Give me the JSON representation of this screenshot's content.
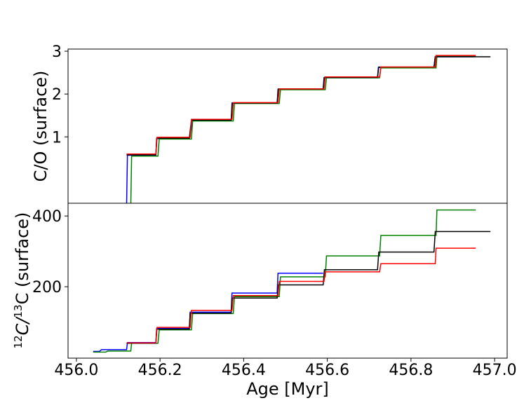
{
  "chart_data": [
    {
      "type": "line",
      "ylabel": "C/O (surface)",
      "xlim": [
        455.98,
        457.03
      ],
      "ylim": [
        -0.55,
        3.05
      ],
      "yticks": [
        1,
        2,
        3
      ],
      "series": [
        {
          "color": "#0000ff",
          "points": [
            [
              456.04,
              -0.65
            ],
            [
              456.055,
              -0.65
            ],
            [
              456.06,
              -0.58
            ],
            [
              456.12,
              -0.58
            ],
            [
              456.122,
              0.57
            ],
            [
              456.19,
              0.57
            ],
            [
              456.192,
              0.96
            ],
            [
              456.27,
              0.96
            ],
            [
              456.278,
              1.38
            ],
            [
              456.37,
              1.38
            ],
            [
              456.372,
              1.79
            ],
            [
              456.48,
              1.79
            ],
            [
              456.482,
              2.11
            ],
            [
              456.59,
              2.11
            ],
            [
              456.592,
              2.38
            ],
            [
              456.72,
              2.38
            ],
            [
              456.722,
              2.62
            ],
            [
              456.855,
              2.62
            ],
            [
              456.858,
              2.87
            ],
            [
              456.95,
              2.87
            ]
          ]
        },
        {
          "color": "#008000",
          "points": [
            [
              456.04,
              -0.68
            ],
            [
              456.07,
              -0.68
            ],
            [
              456.075,
              -0.62
            ],
            [
              456.13,
              -0.62
            ],
            [
              456.132,
              0.55
            ],
            [
              456.195,
              0.55
            ],
            [
              456.198,
              0.95
            ],
            [
              456.275,
              0.95
            ],
            [
              456.278,
              1.37
            ],
            [
              456.375,
              1.37
            ],
            [
              456.378,
              1.78
            ],
            [
              456.485,
              1.78
            ],
            [
              456.488,
              2.1
            ],
            [
              456.595,
              2.1
            ],
            [
              456.598,
              2.38
            ],
            [
              456.725,
              2.38
            ],
            [
              456.728,
              2.61
            ],
            [
              456.86,
              2.61
            ],
            [
              456.862,
              2.88
            ],
            [
              456.955,
              2.88
            ]
          ]
        },
        {
          "color": "#000000",
          "points": [
            [
              456.12,
              0.58
            ],
            [
              456.19,
              0.58
            ],
            [
              456.192,
              0.97
            ],
            [
              456.27,
              0.97
            ],
            [
              456.275,
              1.39
            ],
            [
              456.37,
              1.39
            ],
            [
              456.373,
              1.79
            ],
            [
              456.48,
              1.79
            ],
            [
              456.483,
              2.12
            ],
            [
              456.59,
              2.12
            ],
            [
              456.593,
              2.39
            ],
            [
              456.72,
              2.39
            ],
            [
              456.723,
              2.63
            ],
            [
              456.855,
              2.63
            ],
            [
              456.858,
              2.87
            ],
            [
              456.99,
              2.87
            ]
          ]
        },
        {
          "color": "#ff0000",
          "points": [
            [
              456.12,
              0.6
            ],
            [
              456.19,
              0.6
            ],
            [
              456.193,
              0.99
            ],
            [
              456.272,
              0.99
            ],
            [
              456.275,
              1.41
            ],
            [
              456.372,
              1.41
            ],
            [
              456.375,
              1.8
            ],
            [
              456.482,
              1.8
            ],
            [
              456.485,
              2.12
            ],
            [
              456.592,
              2.12
            ],
            [
              456.595,
              2.4
            ],
            [
              456.725,
              2.4
            ],
            [
              456.728,
              2.63
            ],
            [
              456.858,
              2.63
            ],
            [
              456.86,
              2.9
            ],
            [
              456.955,
              2.9
            ]
          ]
        }
      ]
    },
    {
      "type": "line",
      "xlabel": "Age [Myr]",
      "ylabel_sup": "12",
      "ylabel_mid": "C/",
      "ylabel_sup2": "13",
      "ylabel_tail": "C (surface)",
      "xlim": [
        455.98,
        457.03
      ],
      "ylim": [
        -2,
        436
      ],
      "xticks": [
        "456.0",
        "456.2",
        "456.4",
        "456.6",
        "456.8",
        "457.0"
      ],
      "xtick_values": [
        456.0,
        456.2,
        456.4,
        456.6,
        456.8,
        457.0
      ],
      "yticks": [
        200,
        400
      ],
      "series": [
        {
          "color": "#0000ff",
          "points": [
            [
              456.04,
              17
            ],
            [
              456.055,
              17
            ],
            [
              456.06,
              22
            ],
            [
              456.12,
              22
            ],
            [
              456.122,
              42
            ],
            [
              456.19,
              42
            ],
            [
              456.192,
              82
            ],
            [
              456.27,
              82
            ],
            [
              456.272,
              128
            ],
            [
              456.37,
              128
            ],
            [
              456.372,
              182
            ],
            [
              456.48,
              182
            ],
            [
              456.482,
              238
            ],
            [
              456.59,
              238
            ]
          ]
        },
        {
          "color": "#008000",
          "points": [
            [
              456.04,
              15
            ],
            [
              456.07,
              15
            ],
            [
              456.075,
              18
            ],
            [
              456.13,
              18
            ],
            [
              456.132,
              40
            ],
            [
              456.195,
              40
            ],
            [
              456.198,
              78
            ],
            [
              456.275,
              78
            ],
            [
              456.278,
              124
            ],
            [
              456.375,
              124
            ],
            [
              456.378,
              172
            ],
            [
              456.485,
              172
            ],
            [
              456.488,
              228
            ],
            [
              456.595,
              228
            ],
            [
              456.598,
              287
            ],
            [
              456.725,
              287
            ],
            [
              456.728,
              345
            ],
            [
              456.86,
              345
            ],
            [
              456.862,
              417
            ],
            [
              456.955,
              417
            ]
          ]
        },
        {
          "color": "#000000",
          "points": [
            [
              456.12,
              40
            ],
            [
              456.19,
              40
            ],
            [
              456.192,
              80
            ],
            [
              456.27,
              80
            ],
            [
              456.272,
              125
            ],
            [
              456.37,
              125
            ],
            [
              456.373,
              168
            ],
            [
              456.48,
              168
            ],
            [
              456.483,
              205
            ],
            [
              456.59,
              205
            ],
            [
              456.593,
              248
            ],
            [
              456.72,
              248
            ],
            [
              456.723,
              298
            ],
            [
              456.855,
              298
            ],
            [
              456.858,
              356
            ],
            [
              456.99,
              356
            ]
          ]
        },
        {
          "color": "#ff0000",
          "points": [
            [
              456.12,
              41
            ],
            [
              456.19,
              41
            ],
            [
              456.193,
              85
            ],
            [
              456.272,
              85
            ],
            [
              456.275,
              133
            ],
            [
              456.372,
              133
            ],
            [
              456.375,
              175
            ],
            [
              456.482,
              175
            ],
            [
              456.485,
              215
            ],
            [
              456.592,
              215
            ],
            [
              456.595,
              242
            ],
            [
              456.725,
              242
            ],
            [
              456.728,
              265
            ],
            [
              456.858,
              265
            ],
            [
              456.86,
              309
            ],
            [
              456.955,
              309
            ]
          ]
        }
      ]
    }
  ]
}
